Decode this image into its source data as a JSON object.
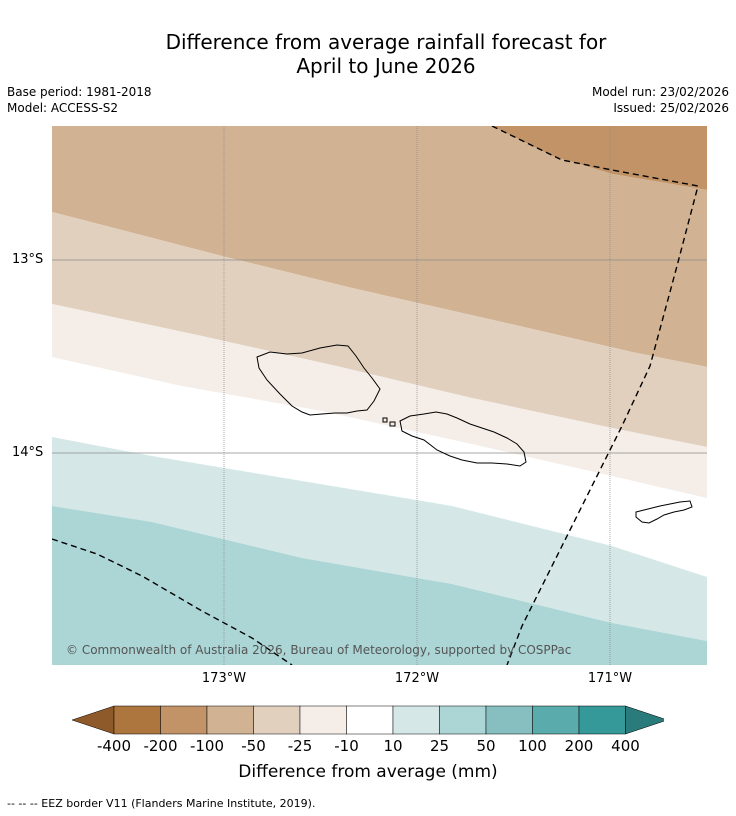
{
  "title_line1": "Difference from average rainfall forecast for",
  "title_line2": "April to June 2026",
  "base_period": "Base period: 1981-2018",
  "model": "Model: ACCESS-S2",
  "model_run": "Model run: 23/02/2026",
  "issued": "Issued: 25/02/2026",
  "map": {
    "lat_labels": [
      "13°S",
      "14°S"
    ],
    "lon_labels": [
      "173°W",
      "172°W",
      "171°W"
    ],
    "copyright": "© Commonwealth of Australia 2026, Bureau of Meteorology, supported by COSPPac"
  },
  "colorbar": {
    "colors": [
      "#8f5a2a",
      "#ad763f",
      "#c19367",
      "#d1b293",
      "#e2d0bf",
      "#f4ede8",
      "#ffffff",
      "#d5e8e7",
      "#acd5d5",
      "#87bfc0",
      "#5aacac",
      "#35999a",
      "#2a7b7b"
    ],
    "labels": [
      "-400",
      "-200",
      "-100",
      "-50",
      "-25",
      "-10",
      "10",
      "25",
      "50",
      "100",
      "200",
      "400"
    ],
    "title": "Difference from average (mm)"
  },
  "footnote": "--  --  -- EEZ border V11 (Flanders Marine Institute, 2019)."
}
